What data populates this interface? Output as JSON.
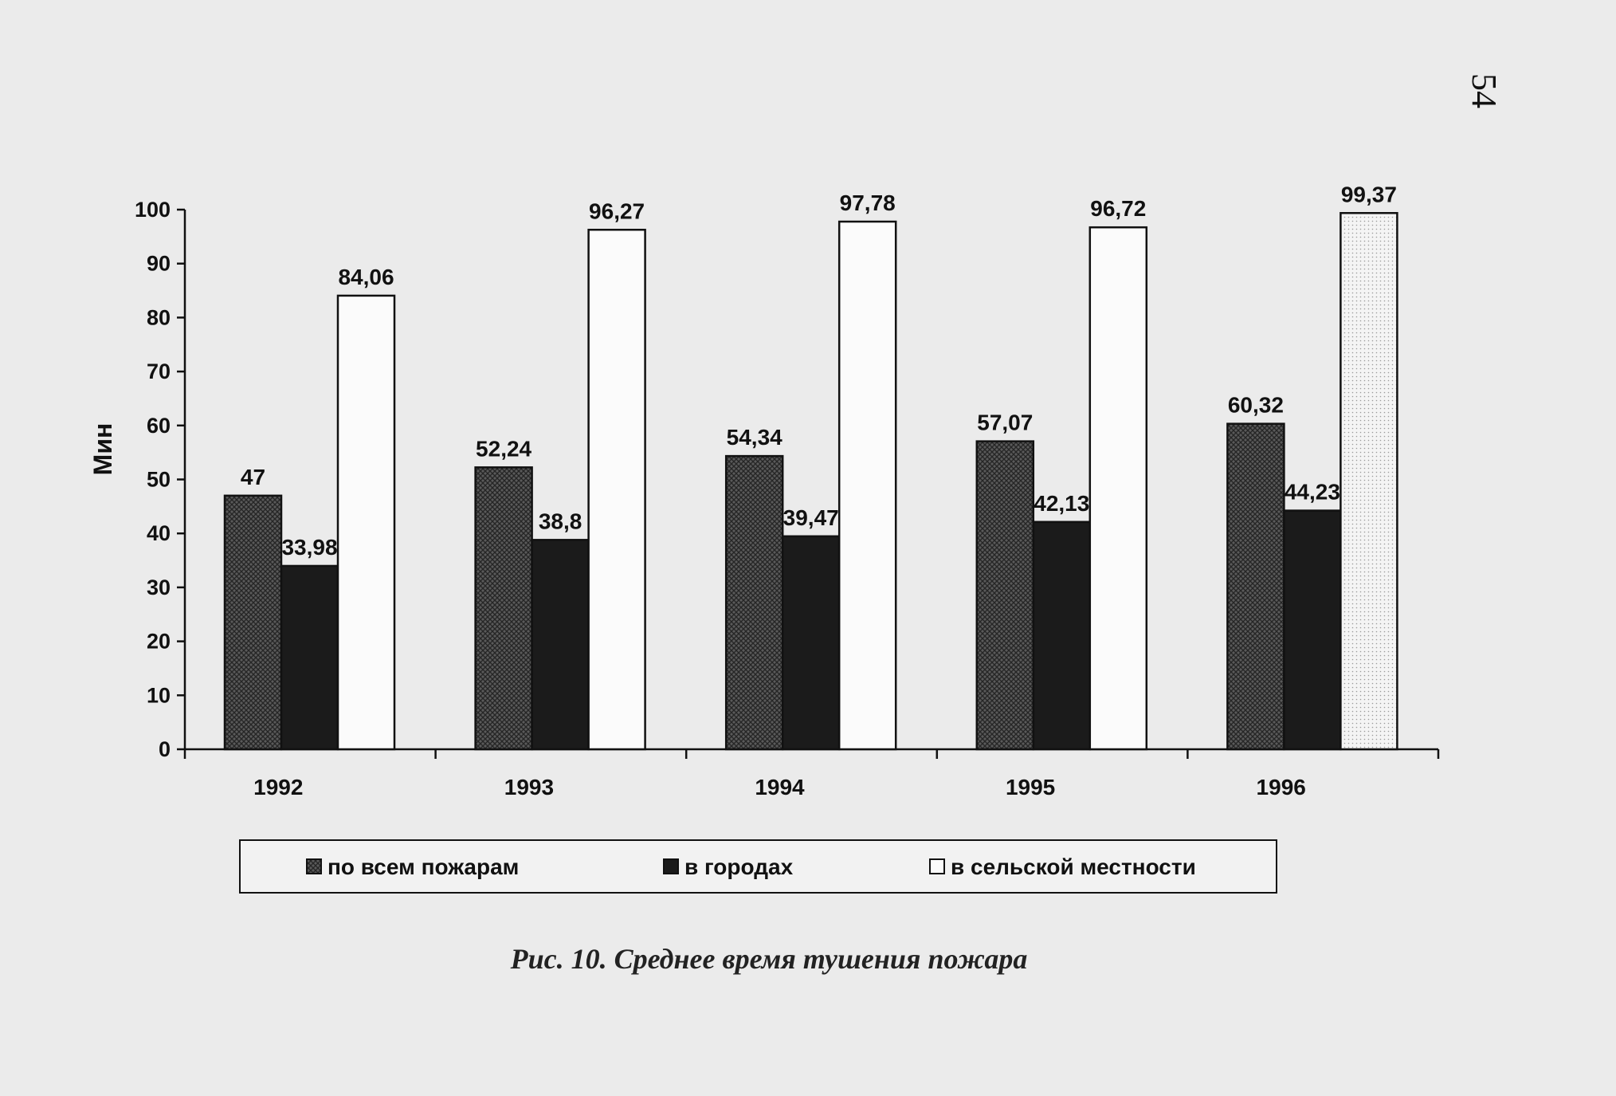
{
  "page_number": "54",
  "caption": "Рис. 10. Среднее время тушения пожара",
  "chart_data": {
    "type": "bar",
    "title": "",
    "xlabel": "",
    "ylabel": "Мин",
    "ylim": [
      0,
      100
    ],
    "yticks": [
      0,
      10,
      20,
      30,
      40,
      50,
      60,
      70,
      80,
      90,
      100
    ],
    "categories": [
      "1992",
      "1993",
      "1994",
      "1995",
      "1996"
    ],
    "series": [
      {
        "name": "по всем пожарам",
        "values": [
          47,
          52.24,
          54.34,
          57.07,
          60.32
        ],
        "labels": [
          "47",
          "52,24",
          "54,34",
          "57,07",
          "60,32"
        ],
        "fill": "crosshatch"
      },
      {
        "name": "в городах",
        "values": [
          33.98,
          38.8,
          39.47,
          42.13,
          44.23
        ],
        "labels": [
          "33,98",
          "38,8",
          "39,47",
          "42,13",
          "44,23"
        ],
        "fill": "black"
      },
      {
        "name": "в сельской местности",
        "values": [
          84.06,
          96.27,
          97.78,
          96.72,
          99.37
        ],
        "labels": [
          "84,06",
          "96,27",
          "97,78",
          "96,72",
          "99,37"
        ],
        "fill": "white"
      }
    ],
    "grid": false,
    "legend_position": "bottom"
  }
}
